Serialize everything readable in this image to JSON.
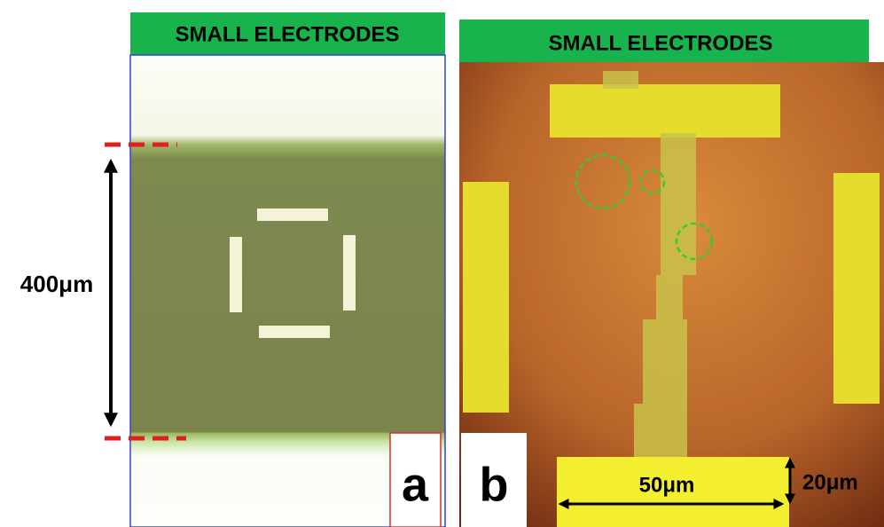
{
  "panels": [
    {
      "header": "SMALL  ELECTRODES",
      "label": "a",
      "scale_label": "400μm"
    },
    {
      "header": "SMALL ELECTRODES",
      "label": "b",
      "scale_label": "50μm",
      "scale_label_2": "20μm"
    }
  ]
}
